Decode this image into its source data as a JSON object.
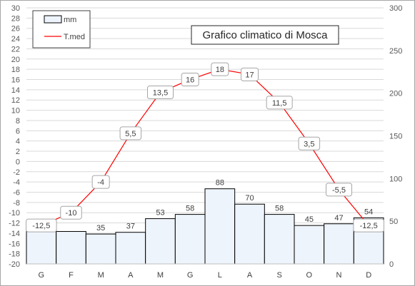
{
  "chart_data": {
    "type": "bar+line",
    "title": "Grafico climatico di Mosca",
    "categories": [
      "G",
      "F",
      "M",
      "A",
      "M",
      "G",
      "L",
      "A",
      "S",
      "O",
      "N",
      "D"
    ],
    "series": [
      {
        "name": "mm",
        "type": "bar",
        "axis": "right",
        "values": [
          40,
          38,
          35,
          37,
          53,
          58,
          88,
          70,
          58,
          45,
          47,
          54
        ],
        "labels": [
          "40",
          "",
          "35",
          "37",
          "53",
          "58",
          "88",
          "70",
          "58",
          "45",
          "47",
          "54"
        ],
        "color": "#eef4fb"
      },
      {
        "name": "T.med",
        "type": "line",
        "axis": "left",
        "values": [
          -12.5,
          -10,
          -4,
          5.5,
          13.5,
          16,
          18,
          17,
          11.5,
          3.5,
          -5.5,
          -12.5
        ],
        "labels": [
          "-12,5",
          "-10",
          "-4",
          "5,5",
          "13,5",
          "16",
          "18",
          "17",
          "11,5",
          "3,5",
          "-5,5",
          "-12,5"
        ],
        "color": "#ff0000"
      }
    ],
    "y_left": {
      "min": -20,
      "max": 30,
      "step": 2
    },
    "y_right": {
      "min": 0,
      "max": 300,
      "step": 50
    },
    "grid": true,
    "legend": "top-left"
  }
}
